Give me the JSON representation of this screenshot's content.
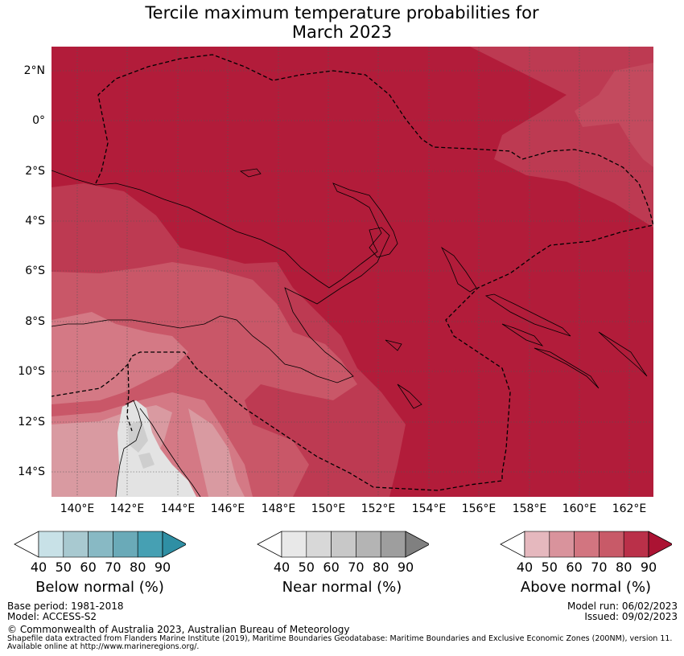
{
  "title_line1": "Tercile maximum temperature probabilities for",
  "title_line2": "March 2023",
  "map": {
    "lat_ticks": [
      "2°N",
      "0°",
      "2°S",
      "4°S",
      "6°S",
      "8°S",
      "10°S",
      "12°S",
      "14°S"
    ],
    "lon_ticks": [
      "140°E",
      "142°E",
      "144°E",
      "146°E",
      "148°E",
      "150°E",
      "152°E",
      "154°E",
      "156°E",
      "158°E",
      "160°E",
      "162°E"
    ],
    "colors": {
      "above_90": "#b21c3a",
      "above_80": "#bd3a52",
      "above_70": "#c95768",
      "above_60": "#d47985",
      "above_50": "#d99aa1",
      "near_bg": "#e3e3e3",
      "near_mid": "#cecece"
    }
  },
  "legends": [
    {
      "id": "below",
      "title": "Below normal (%)",
      "labels": [
        "40",
        "50",
        "60",
        "70",
        "80",
        "90"
      ],
      "colors": [
        "#ffffff",
        "#c8e1e7",
        "#a8c9d0",
        "#88b9c4",
        "#6aaab8",
        "#46a0b3",
        "#2f8fa4"
      ]
    },
    {
      "id": "near",
      "title": "Near normal (%)",
      "labels": [
        "40",
        "50",
        "60",
        "70",
        "80",
        "90"
      ],
      "colors": [
        "#ffffff",
        "#e8e8e8",
        "#d8d8d8",
        "#c8c8c8",
        "#b4b4b4",
        "#9e9e9e",
        "#808080"
      ]
    },
    {
      "id": "above",
      "title": "Above normal (%)",
      "labels": [
        "40",
        "50",
        "60",
        "70",
        "80",
        "90"
      ],
      "colors": [
        "#ffffff",
        "#e5b8be",
        "#d9939c",
        "#d27580",
        "#c85a68",
        "#ba3049",
        "#ab1333"
      ]
    }
  ],
  "footer": {
    "base_period": "Base period: 1981-2018",
    "model": "Model: ACCESS-S2",
    "model_run": "Model run: 06/02/2023",
    "issued": "Issued: 09/02/2023",
    "copyright": "© Commonwealth of Australia 2023, Australian Bureau of Meteorology",
    "shapefile_line1": "Shapefile data extracted from Flanders Marine Institute (2019), Maritime Boundaries Geodatabase: Maritime Boundaries and Exclusive Economic Zones (200NM), version 11.",
    "shapefile_line2": "Available online at http://www.marineregions.org/."
  }
}
